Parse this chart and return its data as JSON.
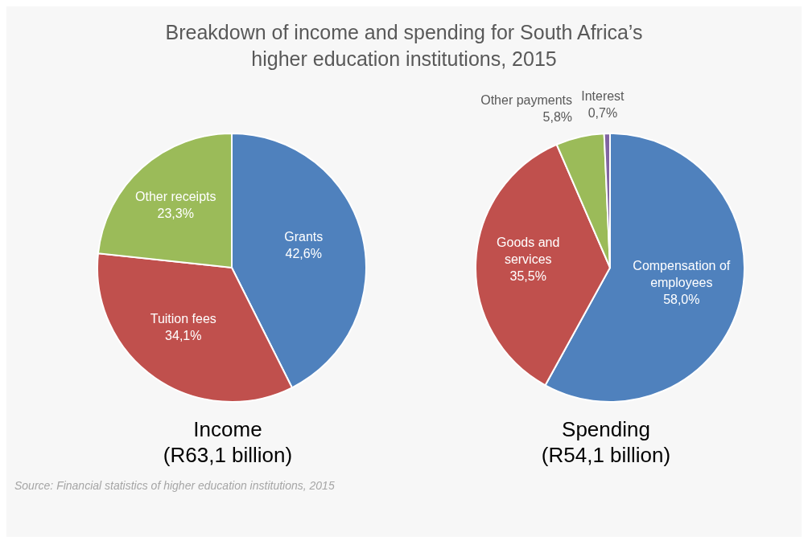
{
  "chart_data": [
    {
      "type": "pie",
      "title": "Breakdown of income and spending for South Africa’s higher education institutions, 2015",
      "xlabel": "Income (R63,1 billion)",
      "categories": [
        "Grants",
        "Tuition fees",
        "Other receipts"
      ],
      "values": [
        42.6,
        34.1,
        23.3
      ],
      "value_labels": [
        "42,6%",
        "34,1%",
        "23,3%"
      ],
      "colors": [
        "#4f81bd",
        "#c0504d",
        "#9bbb59"
      ],
      "annotations": [
        "Source: Financial statistics of higher education institutions, 2015"
      ]
    },
    {
      "type": "pie",
      "xlabel": "Spending (R54,1 billion)",
      "categories": [
        "Compensation of employees",
        "Goods and services",
        "Other payments",
        "Interest"
      ],
      "values": [
        58.0,
        35.5,
        5.8,
        0.7
      ],
      "value_labels": [
        "58,0%",
        "35,5%",
        "5,8%",
        "0,7%"
      ],
      "colors": [
        "#4f81bd",
        "#c0504d",
        "#9bbb59",
        "#8064a2"
      ]
    }
  ]
}
